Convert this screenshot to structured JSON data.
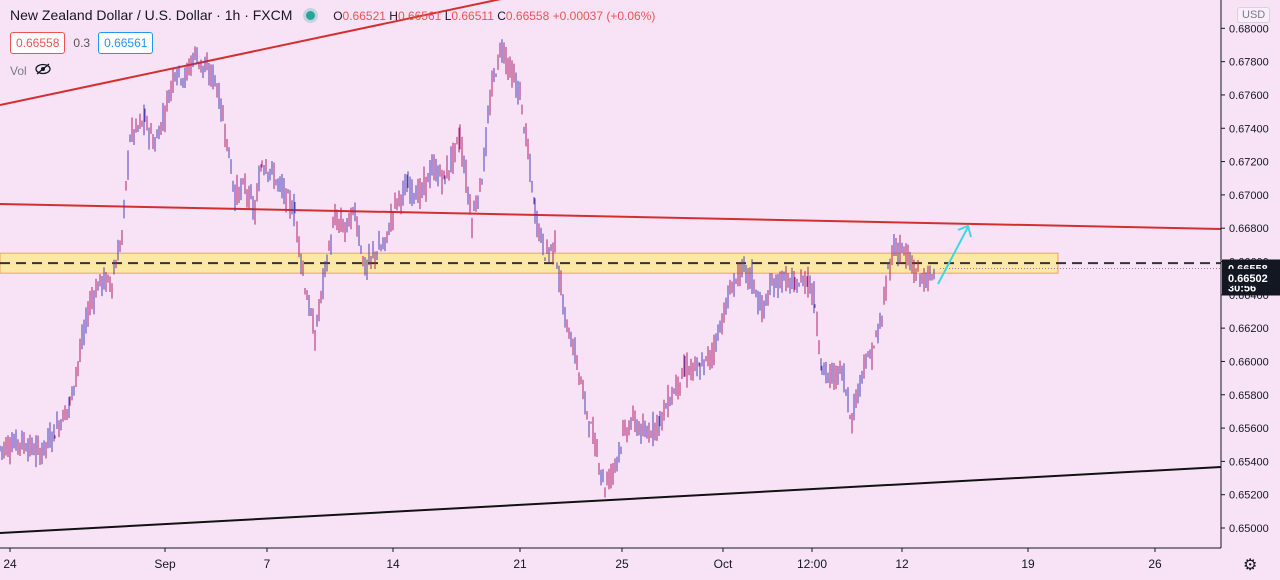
{
  "header": {
    "title": "New Zealand Dollar / U.S. Dollar · 1h · FXCM",
    "open_label": "O",
    "open": "0.66521",
    "high_label": "H",
    "high": "0.66561",
    "low_label": "L",
    "low": "0.66511",
    "close_label": "C",
    "close": "0.66558",
    "change": "+0.00037 (+0.06%)"
  },
  "bid_ask": {
    "bid": "0.66558",
    "spread": "0.3",
    "ask": "0.66561"
  },
  "volume": {
    "label": "Vol"
  },
  "currency_badge": "USD",
  "colors": {
    "background": "#f8e3f6",
    "candle": "#8a1e8a",
    "trend_red": "#d42f2f",
    "trend_black": "#111111",
    "zone": "#fbe7a6",
    "arrow": "#3fd6e6"
  },
  "chart_data": {
    "type": "line",
    "title": "New Zealand Dollar / U.S. Dollar · 1h · FXCM",
    "ylim": [
      0.6488,
      0.6817
    ],
    "y_ticks": [
      "0.68000",
      "0.67800",
      "0.67600",
      "0.67400",
      "0.67200",
      "0.67000",
      "0.66800",
      "0.66600",
      "0.66400",
      "0.66200",
      "0.66000",
      "0.65800",
      "0.65600",
      "0.65400",
      "0.65200",
      "0.65000"
    ],
    "y_tick_values": [
      0.68,
      0.678,
      0.676,
      0.674,
      0.672,
      0.67,
      0.668,
      0.666,
      0.664,
      0.662,
      0.66,
      0.658,
      0.656,
      0.654,
      0.652,
      0.65
    ],
    "x_ticks": [
      "24",
      "Sep",
      "7",
      "14",
      "21",
      "25",
      "Oct",
      "12:00",
      "12",
      "19",
      "26"
    ],
    "x_tick_positions": [
      10,
      165,
      267,
      393,
      520,
      622,
      723,
      812,
      902,
      1028,
      1155
    ],
    "price_labels": [
      {
        "text": "0.66558",
        "value": 0.66558
      },
      {
        "text": "30:56",
        "value": 0.665
      },
      {
        "text": "0.66502",
        "value": 0.66502
      }
    ],
    "series": [
      {
        "values": [
          [
            0,
            0.6548
          ],
          [
            20,
            0.6552
          ],
          [
            40,
            0.6545
          ],
          [
            55,
            0.6558
          ],
          [
            70,
            0.6575
          ],
          [
            80,
            0.6605
          ],
          [
            90,
            0.6635
          ],
          [
            100,
            0.6648
          ],
          [
            112,
            0.6648
          ],
          [
            122,
            0.6675
          ],
          [
            130,
            0.6735
          ],
          [
            145,
            0.6745
          ],
          [
            155,
            0.673
          ],
          [
            165,
            0.675
          ],
          [
            175,
            0.6775
          ],
          [
            185,
            0.677
          ],
          [
            195,
            0.6785
          ],
          [
            205,
            0.6775
          ],
          [
            215,
            0.677
          ],
          [
            225,
            0.674
          ],
          [
            235,
            0.67
          ],
          [
            245,
            0.6705
          ],
          [
            255,
            0.669
          ],
          [
            262,
            0.672
          ],
          [
            270,
            0.6715
          ],
          [
            280,
            0.6705
          ],
          [
            295,
            0.669
          ],
          [
            305,
            0.6645
          ],
          [
            315,
            0.6615
          ],
          [
            325,
            0.6655
          ],
          [
            335,
            0.6685
          ],
          [
            345,
            0.668
          ],
          [
            355,
            0.669
          ],
          [
            365,
            0.6655
          ],
          [
            375,
            0.6665
          ],
          [
            385,
            0.667
          ],
          [
            395,
            0.6695
          ],
          [
            408,
            0.6705
          ],
          [
            420,
            0.67
          ],
          [
            432,
            0.6715
          ],
          [
            445,
            0.671
          ],
          [
            460,
            0.6735
          ],
          [
            472,
            0.6685
          ],
          [
            482,
            0.671
          ],
          [
            492,
            0.6765
          ],
          [
            502,
            0.679
          ],
          [
            510,
            0.6775
          ],
          [
            520,
            0.676
          ],
          [
            528,
            0.6725
          ],
          [
            535,
            0.669
          ],
          [
            545,
            0.6665
          ],
          [
            555,
            0.667
          ],
          [
            565,
            0.6625
          ],
          [
            575,
            0.6605
          ],
          [
            585,
            0.6575
          ],
          [
            595,
            0.655
          ],
          [
            605,
            0.6525
          ],
          [
            613,
            0.6535
          ],
          [
            623,
            0.6555
          ],
          [
            633,
            0.6565
          ],
          [
            645,
            0.6555
          ],
          [
            660,
            0.6565
          ],
          [
            672,
            0.658
          ],
          [
            685,
            0.6595
          ],
          [
            700,
            0.6595
          ],
          [
            712,
            0.6605
          ],
          [
            722,
            0.6625
          ],
          [
            732,
            0.6645
          ],
          [
            742,
            0.6655
          ],
          [
            752,
            0.665
          ],
          [
            762,
            0.663
          ],
          [
            772,
            0.6645
          ],
          [
            782,
            0.665
          ],
          [
            795,
            0.6645
          ],
          [
            808,
            0.665
          ],
          [
            815,
            0.6635
          ],
          [
            822,
            0.6595
          ],
          [
            832,
            0.659
          ],
          [
            842,
            0.6595
          ],
          [
            852,
            0.6565
          ],
          [
            862,
            0.6595
          ],
          [
            872,
            0.6605
          ],
          [
            882,
            0.6625
          ],
          [
            888,
            0.6655
          ],
          [
            894,
            0.6668
          ],
          [
            902,
            0.6668
          ],
          [
            910,
            0.6658
          ],
          [
            918,
            0.6652
          ],
          [
            928,
            0.6648
          ],
          [
            936,
            0.6656
          ]
        ]
      }
    ],
    "annotations": [
      {
        "type": "resistance-zone",
        "low": 0.6653,
        "high": 0.6665
      },
      {
        "type": "trend-line",
        "color": "red"
      },
      {
        "type": "trend-line",
        "color": "red"
      },
      {
        "type": "trend-line",
        "color": "black"
      },
      {
        "type": "dashed-line",
        "value": 0.6659
      },
      {
        "type": "arrow",
        "color": "cyan"
      }
    ]
  }
}
